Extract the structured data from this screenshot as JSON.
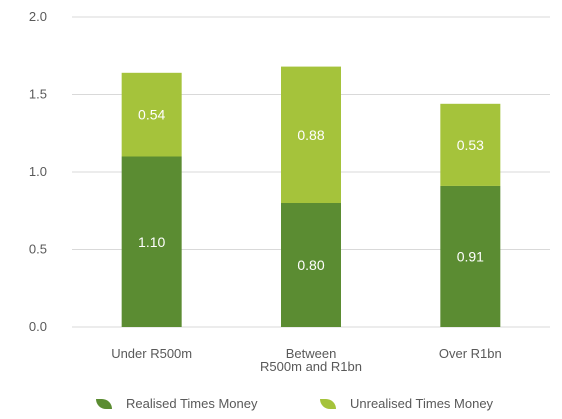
{
  "chart_data": {
    "type": "bar",
    "stacked": true,
    "categories": [
      [
        "Under R500m"
      ],
      [
        "Between",
        "R500m and R1bn"
      ],
      [
        "Over R1bn"
      ]
    ],
    "series": [
      {
        "name": "Realised Times Money",
        "values": [
          1.1,
          0.8,
          0.91
        ],
        "color": "#5b8c32",
        "labels": [
          "1.10",
          "0.80",
          "0.91"
        ]
      },
      {
        "name": "Unrealised Times Money",
        "values": [
          0.54,
          0.88,
          0.53
        ],
        "color": "#a5c33b",
        "labels": [
          "0.54",
          "0.88",
          "0.53"
        ]
      }
    ],
    "ylim": [
      0,
      2.0
    ],
    "yticks": [
      "0.0",
      "0.5",
      "1.0",
      "1.5",
      "2.0"
    ],
    "ytick_values": [
      0,
      0.5,
      1.0,
      1.5,
      2.0
    ],
    "grid": true,
    "gridline_color": "#d9d9d9",
    "legend_position": "bottom"
  }
}
